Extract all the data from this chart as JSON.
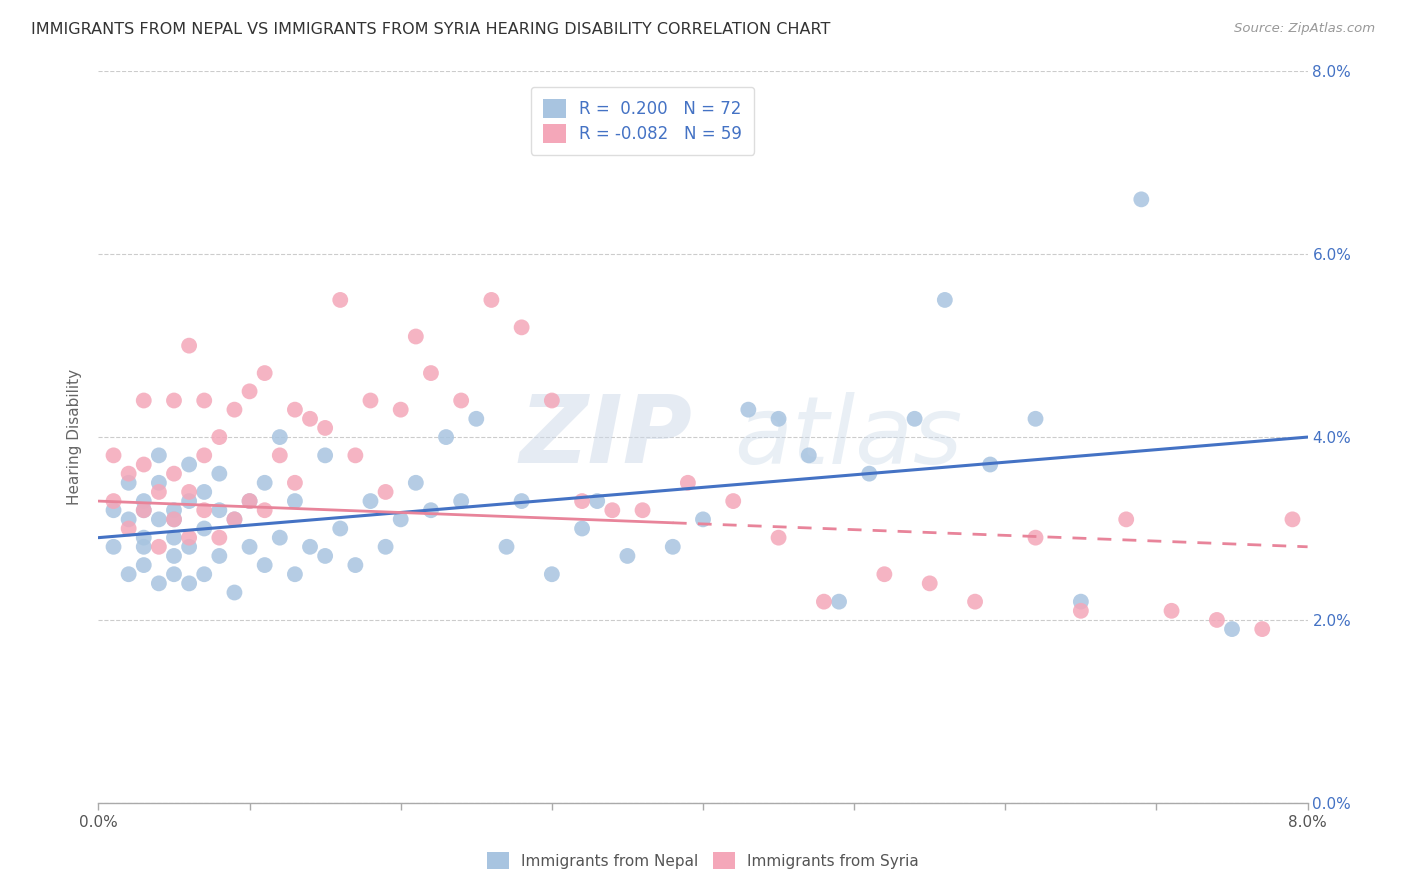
{
  "title": "IMMIGRANTS FROM NEPAL VS IMMIGRANTS FROM SYRIA HEARING DISABILITY CORRELATION CHART",
  "source": "Source: ZipAtlas.com",
  "ylabel": "Hearing Disability",
  "ytick_vals": [
    0.0,
    0.02,
    0.04,
    0.06,
    0.08
  ],
  "xlim": [
    0.0,
    0.08
  ],
  "ylim": [
    0.0,
    0.08
  ],
  "nepal_R": "0.200",
  "nepal_N": "72",
  "syria_R": "-0.082",
  "syria_N": "59",
  "nepal_color": "#a8c4e0",
  "syria_color": "#f4a7b9",
  "nepal_line_color": "#4472c4",
  "syria_line_color": "#e8849a",
  "watermark_zip": "ZIP",
  "watermark_atlas": "atlas",
  "nepal_scatter_x": [
    0.001,
    0.001,
    0.002,
    0.002,
    0.002,
    0.003,
    0.003,
    0.003,
    0.003,
    0.003,
    0.004,
    0.004,
    0.004,
    0.004,
    0.005,
    0.005,
    0.005,
    0.005,
    0.005,
    0.006,
    0.006,
    0.006,
    0.006,
    0.007,
    0.007,
    0.007,
    0.008,
    0.008,
    0.008,
    0.009,
    0.009,
    0.01,
    0.01,
    0.011,
    0.011,
    0.012,
    0.012,
    0.013,
    0.013,
    0.014,
    0.015,
    0.015,
    0.016,
    0.017,
    0.018,
    0.019,
    0.02,
    0.021,
    0.022,
    0.023,
    0.024,
    0.025,
    0.027,
    0.028,
    0.03,
    0.032,
    0.033,
    0.035,
    0.038,
    0.04,
    0.043,
    0.045,
    0.047,
    0.049,
    0.051,
    0.054,
    0.056,
    0.059,
    0.062,
    0.065,
    0.069,
    0.075
  ],
  "nepal_scatter_y": [
    0.028,
    0.032,
    0.025,
    0.031,
    0.035,
    0.026,
    0.029,
    0.032,
    0.028,
    0.033,
    0.024,
    0.031,
    0.035,
    0.038,
    0.025,
    0.029,
    0.032,
    0.027,
    0.031,
    0.024,
    0.028,
    0.033,
    0.037,
    0.025,
    0.03,
    0.034,
    0.027,
    0.032,
    0.036,
    0.023,
    0.031,
    0.028,
    0.033,
    0.026,
    0.035,
    0.029,
    0.04,
    0.025,
    0.033,
    0.028,
    0.027,
    0.038,
    0.03,
    0.026,
    0.033,
    0.028,
    0.031,
    0.035,
    0.032,
    0.04,
    0.033,
    0.042,
    0.028,
    0.033,
    0.025,
    0.03,
    0.033,
    0.027,
    0.028,
    0.031,
    0.043,
    0.042,
    0.038,
    0.022,
    0.036,
    0.042,
    0.055,
    0.037,
    0.042,
    0.022,
    0.066,
    0.019
  ],
  "syria_scatter_x": [
    0.001,
    0.001,
    0.002,
    0.002,
    0.003,
    0.003,
    0.003,
    0.004,
    0.004,
    0.005,
    0.005,
    0.005,
    0.006,
    0.006,
    0.006,
    0.007,
    0.007,
    0.007,
    0.008,
    0.008,
    0.009,
    0.009,
    0.01,
    0.01,
    0.011,
    0.011,
    0.012,
    0.013,
    0.013,
    0.014,
    0.015,
    0.016,
    0.017,
    0.018,
    0.019,
    0.02,
    0.021,
    0.022,
    0.024,
    0.026,
    0.028,
    0.03,
    0.032,
    0.034,
    0.036,
    0.039,
    0.042,
    0.045,
    0.048,
    0.052,
    0.055,
    0.058,
    0.062,
    0.065,
    0.068,
    0.071,
    0.074,
    0.077,
    0.079
  ],
  "syria_scatter_y": [
    0.033,
    0.038,
    0.03,
    0.036,
    0.032,
    0.037,
    0.044,
    0.028,
    0.034,
    0.031,
    0.036,
    0.044,
    0.029,
    0.034,
    0.05,
    0.032,
    0.038,
    0.044,
    0.029,
    0.04,
    0.031,
    0.043,
    0.033,
    0.045,
    0.032,
    0.047,
    0.038,
    0.035,
    0.043,
    0.042,
    0.041,
    0.055,
    0.038,
    0.044,
    0.034,
    0.043,
    0.051,
    0.047,
    0.044,
    0.055,
    0.052,
    0.044,
    0.033,
    0.032,
    0.032,
    0.035,
    0.033,
    0.029,
    0.022,
    0.025,
    0.024,
    0.022,
    0.029,
    0.021,
    0.031,
    0.021,
    0.02,
    0.019,
    0.031
  ],
  "nepal_line_start_y": 0.029,
  "nepal_line_end_y": 0.04,
  "syria_line_start_y": 0.033,
  "syria_line_end_y": 0.028
}
